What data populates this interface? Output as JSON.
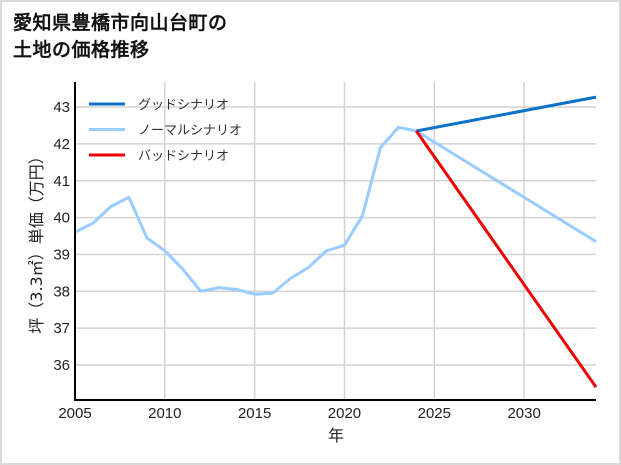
{
  "title_line1": "愛知県豊橋市向山台町の",
  "title_line2": "土地の価格推移",
  "chart_data": {
    "type": "line",
    "title": "愛知県豊橋市向山台町の土地の価格推移",
    "xlabel": "年",
    "ylabel": "坪（3.3㎡）単価（万円）",
    "xlim": [
      2005,
      2034
    ],
    "ylim": [
      35.05,
      43.68
    ],
    "x_ticks": [
      2005,
      2010,
      2015,
      2020,
      2025,
      2030
    ],
    "y_ticks": [
      36,
      37,
      38,
      39,
      40,
      41,
      42,
      43
    ],
    "grid": true,
    "legend_position": "upper left",
    "series": [
      {
        "name": "グッドシナリオ",
        "color": "#0a72c8",
        "x": [
          2024,
          2034
        ],
        "values": [
          42.35,
          43.27
        ]
      },
      {
        "name": "ノーマルシナリオ",
        "color": "#99ccff",
        "x": [
          2005,
          2006,
          2007,
          2008,
          2009,
          2010,
          2011,
          2012,
          2013,
          2014,
          2015,
          2016,
          2017,
          2018,
          2019,
          2020,
          2021,
          2022,
          2023,
          2024,
          2034
        ],
        "values": [
          39.6,
          39.85,
          40.3,
          40.55,
          39.45,
          39.1,
          38.6,
          38.0,
          38.1,
          38.05,
          37.92,
          37.95,
          38.35,
          38.65,
          39.1,
          39.25,
          40.05,
          41.9,
          42.45,
          42.35,
          39.35
        ]
      },
      {
        "name": "バッドシナリオ",
        "color": "#ee0000",
        "x": [
          2024,
          2034
        ],
        "values": [
          42.35,
          35.4
        ]
      }
    ]
  }
}
